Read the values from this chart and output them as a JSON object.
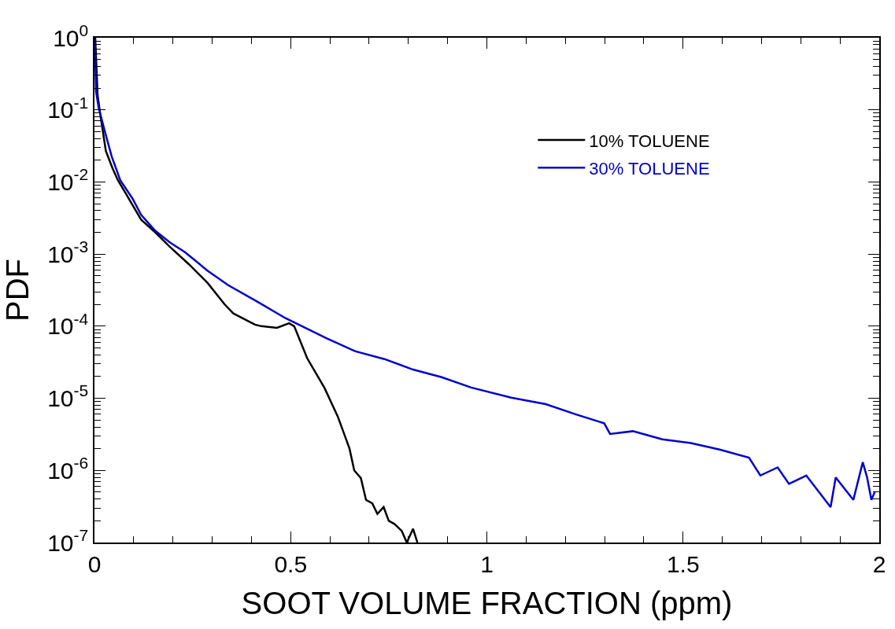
{
  "chart_data": {
    "type": "line",
    "xlabel": "SOOT VOLUME FRACTION (ppm)",
    "ylabel": "PDF",
    "log": "y",
    "legend": "top right",
    "marker": "none",
    "line_style": "solid",
    "xlim": [
      0,
      2
    ],
    "xticks": [
      0,
      0.5,
      1,
      1.5,
      2
    ],
    "ylim": [
      1e-07,
      1
    ],
    "yticks": [
      {
        "value": 1,
        "label": "10$^{0}$"
      },
      {
        "value": 0.1,
        "label": "10$^{-1}$"
      },
      {
        "value": 0.01,
        "label": "10$^{-2}$"
      },
      {
        "value": 0.001,
        "label": "10$^{-3}$"
      },
      {
        "value": 0.0001,
        "label": "10$^{-4}$"
      },
      {
        "value": 1e-05,
        "label": "10$^{-5}$"
      },
      {
        "value": 1e-06,
        "label": "10$^{-6}$"
      },
      {
        "value": 1e-07,
        "label": "10$^{-7}$"
      }
    ],
    "series": [
      {
        "name": "10% TOLUENE",
        "color": "#000000",
        "x": [
          0.002,
          0.008,
          0.015,
          0.029,
          0.046,
          0.06,
          0.082,
          0.119,
          0.155,
          0.192,
          0.241,
          0.288,
          0.332,
          0.354,
          0.409,
          0.425,
          0.465,
          0.496,
          0.509,
          0.542,
          0.586,
          0.62,
          0.65,
          0.662,
          0.679,
          0.692,
          0.708,
          0.721,
          0.737,
          0.75,
          0.765,
          0.783,
          0.796,
          0.812,
          0.823
        ],
        "values": [
          1,
          0.16,
          0.085,
          0.027,
          0.0155,
          0.0105,
          0.0066,
          0.003,
          0.002,
          0.00126,
          0.00072,
          0.0004,
          0.0002,
          0.00015,
          0.000105,
          0.0001,
          9.5e-05,
          0.00011,
          0.0001,
          3.6e-05,
          1.4e-05,
          5.6e-06,
          2e-06,
          1e-06,
          7.8e-07,
          3.9e-07,
          3.5e-07,
          2.5e-07,
          3.1e-07,
          2e-07,
          1.8e-07,
          1.45e-07,
          1e-07,
          1.55e-07,
          1e-07
        ]
      },
      {
        "name": "30% TOLUENE",
        "color": "#0000cc",
        "x": [
          0.001,
          0.004,
          0.011,
          0.027,
          0.044,
          0.066,
          0.097,
          0.119,
          0.155,
          0.192,
          0.23,
          0.288,
          0.341,
          0.414,
          0.487,
          0.591,
          0.664,
          0.739,
          0.812,
          0.885,
          0.96,
          1.062,
          1.15,
          1.226,
          1.299,
          1.314,
          1.372,
          1.447,
          1.52,
          1.593,
          1.668,
          1.697,
          1.741,
          1.77,
          1.814,
          1.876,
          1.889,
          1.934,
          1.958,
          1.969,
          1.98,
          1.989
        ],
        "values": [
          0.95,
          0.18,
          0.105,
          0.049,
          0.0225,
          0.0105,
          0.0059,
          0.0035,
          0.0021,
          0.00145,
          0.00107,
          0.00059,
          0.00037,
          0.00022,
          0.000129,
          6.8e-05,
          4.5e-05,
          3.5e-05,
          2.5e-05,
          1.96e-05,
          1.41e-05,
          1.02e-05,
          8.3e-06,
          6e-06,
          4.5e-06,
          3.2e-06,
          3.5e-06,
          2.7e-06,
          2.4e-06,
          1.95e-06,
          1.5e-06,
          8.5e-07,
          1.1e-06,
          6.5e-07,
          8.5e-07,
          3.1e-07,
          8e-07,
          3.9e-07,
          1.3e-06,
          8e-07,
          3.9e-07,
          5.1e-07
        ]
      }
    ]
  }
}
